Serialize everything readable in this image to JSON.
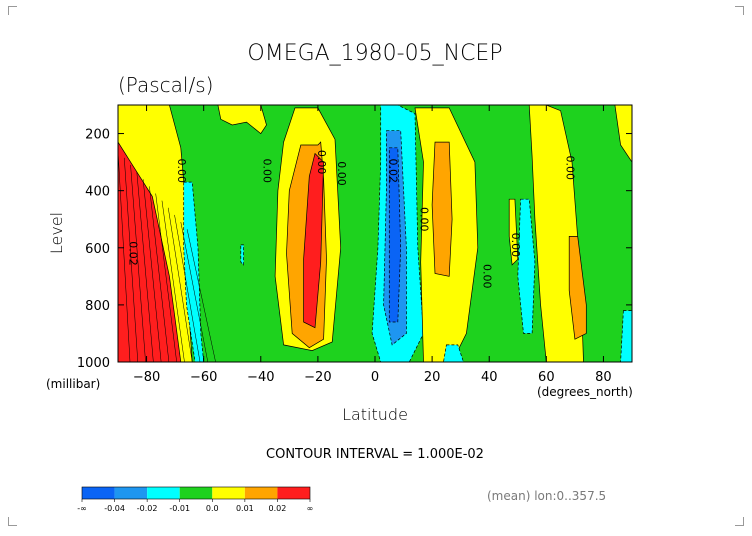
{
  "chart_data": {
    "type": "heatmap",
    "title": "OMEGA_1980-05_NCEP",
    "subtitle": "(Pascal/s)",
    "xlabel": "Latitude",
    "ylabel": "Level",
    "x_unit": "(degrees_north)",
    "y_unit": "(millibar)",
    "xlim": [
      -90,
      90
    ],
    "ylim": [
      1000,
      100
    ],
    "x_ticks": [
      -80,
      -60,
      -40,
      -20,
      0,
      20,
      40,
      60,
      80
    ],
    "y_ticks": [
      200,
      400,
      600,
      800,
      1000
    ],
    "contour_interval": "CONTOUR INTERVAL = 1.000E-02",
    "footnote": "(mean) lon:0..357.5",
    "colorbar": {
      "labels": [
        "-∞",
        "-0.04",
        "-0.02",
        "-0.01",
        "0.0",
        "0.01",
        "0.02",
        "∞"
      ],
      "colors": [
        "#0a64f5",
        "#1e96f0",
        "#00ffff",
        "#1ed21e",
        "#ffff00",
        "#ffa500",
        "#ff1e1e"
      ]
    },
    "contour_labels": [
      {
        "text": "0.00",
        "x": -69,
        "y": 330
      },
      {
        "text": "0.00",
        "x": -39,
        "y": 330
      },
      {
        "text": "0.00",
        "x": -20,
        "y": 300
      },
      {
        "text": "0.00",
        "x": -13,
        "y": 340
      },
      {
        "text": "0.02",
        "x": 5,
        "y": 330
      },
      {
        "text": "0.00",
        "x": 16,
        "y": 500
      },
      {
        "text": "0.00",
        "x": 38,
        "y": 700
      },
      {
        "text": "0.00",
        "x": 48,
        "y": 590
      },
      {
        "text": "0.00",
        "x": 67,
        "y": 320
      },
      {
        "text": "0.02",
        "x": -86,
        "y": 620
      }
    ],
    "bands": [
      {
        "value": 0.03,
        "pts": [
          [
            -90,
            230
          ],
          [
            -85,
            230
          ],
          [
            -80,
            300
          ],
          [
            -75,
            450
          ],
          [
            -70,
            650
          ],
          [
            -66,
            900
          ],
          [
            -64,
            1000
          ],
          [
            -90,
            1000
          ]
        ]
      },
      {
        "value": 0.01,
        "pts": [
          [
            -25,
            220
          ],
          [
            -20,
            230
          ],
          [
            -18,
            350
          ],
          [
            -17,
            600
          ],
          [
            -18,
            900
          ],
          [
            -24,
            920
          ],
          [
            -29,
            850
          ],
          [
            -31,
            600
          ],
          [
            -30,
            380
          ]
        ]
      },
      {
        "value": 0.015,
        "pts": [
          [
            -22,
            260
          ],
          [
            -19,
            260
          ],
          [
            -18,
            420
          ],
          [
            -18,
            800
          ],
          [
            -21,
            900
          ],
          [
            -25,
            870
          ],
          [
            -26,
            700
          ],
          [
            -25,
            450
          ]
        ]
      },
      {
        "value": 0.03,
        "pts": [
          [
            -20,
            270
          ],
          [
            -18,
            300
          ],
          [
            -19,
            650
          ],
          [
            -21,
            880
          ],
          [
            -24,
            860
          ],
          [
            -24,
            650
          ],
          [
            -22,
            350
          ]
        ]
      },
      {
        "value": 0.005,
        "pts": [
          [
            -90,
            100
          ],
          [
            -72,
            100
          ],
          [
            -68,
            250
          ],
          [
            -66,
            480
          ],
          [
            -66,
            700
          ],
          [
            -64,
            1000
          ],
          [
            -68,
            1000
          ],
          [
            -72,
            700
          ],
          [
            -78,
            420
          ],
          [
            -90,
            230
          ]
        ]
      },
      {
        "value": 0.005,
        "pts": [
          [
            -55,
            100
          ],
          [
            -40,
            100
          ],
          [
            -38,
            170
          ],
          [
            -40,
            200
          ],
          [
            -45,
            160
          ],
          [
            -50,
            170
          ],
          [
            -54,
            150
          ]
        ]
      },
      {
        "value": 0.005,
        "pts": [
          [
            -28,
            110
          ],
          [
            -20,
            110
          ],
          [
            -14,
            220
          ],
          [
            -12,
            600
          ],
          [
            -15,
            930
          ],
          [
            -22,
            960
          ],
          [
            -32,
            940
          ],
          [
            -35,
            700
          ],
          [
            -34,
            400
          ],
          [
            -32,
            230
          ]
        ]
      },
      {
        "value": 0.01,
        "pts": [
          [
            -20,
            240
          ],
          [
            -19,
            230
          ],
          [
            -18,
            360
          ],
          [
            -17,
            640
          ],
          [
            -18,
            920
          ],
          [
            -23,
            950
          ],
          [
            -29,
            900
          ],
          [
            -31,
            620
          ],
          [
            -30,
            400
          ],
          [
            -26,
            240
          ]
        ]
      },
      {
        "value": 0.03,
        "pts": [
          [
            -21,
            270
          ],
          [
            -18,
            300
          ],
          [
            -19,
            650
          ],
          [
            -21,
            880
          ],
          [
            -25,
            860
          ],
          [
            -25,
            640
          ],
          [
            -23,
            350
          ]
        ]
      },
      {
        "value": -0.005,
        "pts": [
          [
            -67,
            370
          ],
          [
            -64,
            370
          ],
          [
            -62,
            600
          ],
          [
            -61,
            900
          ],
          [
            -60,
            1000
          ],
          [
            -63,
            1000
          ],
          [
            -66,
            800
          ],
          [
            -67,
            600
          ]
        ]
      },
      {
        "value": -0.005,
        "pts": [
          [
            2,
            100
          ],
          [
            8,
            100
          ],
          [
            14,
            130
          ],
          [
            15,
            600
          ],
          [
            17,
            900
          ],
          [
            12,
            1000
          ],
          [
            2,
            1000
          ],
          [
            -1,
            900
          ],
          [
            1,
            600
          ],
          [
            2,
            300
          ]
        ]
      },
      {
        "value": -0.015,
        "pts": [
          [
            4,
            190
          ],
          [
            9,
            190
          ],
          [
            11,
            600
          ],
          [
            11,
            900
          ],
          [
            6,
            940
          ],
          [
            3,
            800
          ],
          [
            4,
            400
          ]
        ]
      },
      {
        "value": -0.025,
        "pts": [
          [
            5,
            250
          ],
          [
            8,
            250
          ],
          [
            9,
            600
          ],
          [
            8,
            860
          ],
          [
            5,
            860
          ],
          [
            5,
            500
          ]
        ]
      },
      {
        "value": 0.005,
        "pts": [
          [
            14,
            110
          ],
          [
            26,
            110
          ],
          [
            35,
            300
          ],
          [
            36,
            600
          ],
          [
            32,
            900
          ],
          [
            27,
            1000
          ],
          [
            17,
            1000
          ],
          [
            16,
            650
          ],
          [
            17,
            300
          ]
        ]
      },
      {
        "value": 0.01,
        "pts": [
          [
            21,
            230
          ],
          [
            26,
            230
          ],
          [
            27,
            500
          ],
          [
            26,
            700
          ],
          [
            21,
            690
          ],
          [
            20,
            450
          ]
        ]
      },
      {
        "value": -0.005,
        "pts": [
          [
            25,
            940
          ],
          [
            29,
            940
          ],
          [
            31,
            1000
          ],
          [
            24,
            1000
          ]
        ]
      },
      {
        "value": 0.005,
        "pts": [
          [
            54,
            100
          ],
          [
            60,
            100
          ],
          [
            65,
            120
          ],
          [
            69,
            300
          ],
          [
            72,
            700
          ],
          [
            73,
            1000
          ],
          [
            60,
            1000
          ],
          [
            58,
            800
          ],
          [
            56,
            500
          ],
          [
            55,
            280
          ]
        ]
      },
      {
        "value": 0.01,
        "pts": [
          [
            68,
            560
          ],
          [
            71,
            560
          ],
          [
            74,
            800
          ],
          [
            74,
            900
          ],
          [
            70,
            920
          ],
          [
            68,
            750
          ]
        ]
      },
      {
        "value": 0.005,
        "pts": [
          [
            84,
            100
          ],
          [
            90,
            100
          ],
          [
            90,
            300
          ],
          [
            86,
            240
          ]
        ]
      },
      {
        "value": -0.005,
        "pts": [
          [
            51,
            430
          ],
          [
            54,
            430
          ],
          [
            56,
            650
          ],
          [
            55,
            900
          ],
          [
            52,
            900
          ],
          [
            50,
            700
          ]
        ]
      },
      {
        "value": -0.005,
        "pts": [
          [
            87,
            820
          ],
          [
            90,
            820
          ],
          [
            90,
            1000
          ],
          [
            86,
            1000
          ]
        ]
      },
      {
        "value": 0.005,
        "pts": [
          [
            47,
            430
          ],
          [
            49,
            430
          ],
          [
            50,
            640
          ],
          [
            48,
            660
          ],
          [
            47,
            560
          ]
        ]
      },
      {
        "value": -0.005,
        "pts": [
          [
            -47,
            590
          ],
          [
            -46,
            590
          ],
          [
            -46,
            660
          ],
          [
            -47,
            650
          ]
        ]
      }
    ]
  }
}
